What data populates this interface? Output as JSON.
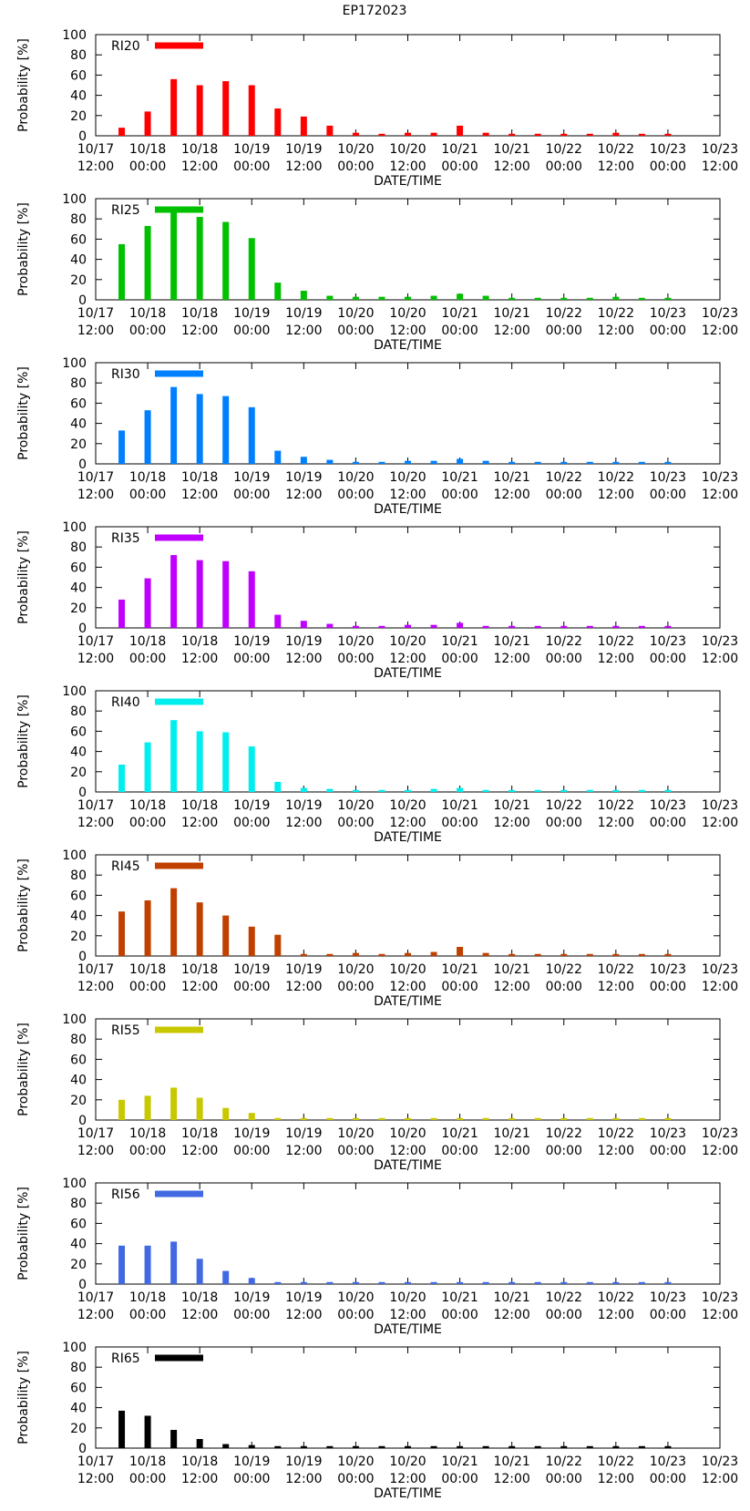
{
  "title": "EP172023",
  "chart_data": [
    {
      "type": "bar",
      "name": "RI20",
      "color": "#ff0000",
      "ylabel": "Probability [%]",
      "xlabel": "DATE/TIME",
      "ylim": [
        0,
        100
      ],
      "values": [
        8,
        24,
        56,
        50,
        54,
        50,
        27,
        19,
        10,
        3,
        2,
        3,
        3,
        10,
        3,
        2,
        2,
        2,
        2,
        3,
        2,
        2
      ]
    },
    {
      "type": "bar",
      "name": "RI25",
      "color": "#00c000",
      "ylabel": "Probability [%]",
      "xlabel": "DATE/TIME",
      "ylim": [
        0,
        100
      ],
      "values": [
        55,
        73,
        88,
        82,
        77,
        61,
        17,
        9,
        4,
        3,
        3,
        3,
        4,
        6,
        4,
        2,
        2,
        2,
        2,
        3,
        2,
        2
      ]
    },
    {
      "type": "bar",
      "name": "RI30",
      "color": "#0080ff",
      "ylabel": "Probability [%]",
      "xlabel": "DATE/TIME",
      "ylim": [
        0,
        100
      ],
      "values": [
        33,
        53,
        76,
        69,
        67,
        56,
        13,
        7,
        4,
        2,
        2,
        3,
        3,
        5,
        3,
        2,
        2,
        2,
        2,
        2,
        2,
        2
      ]
    },
    {
      "type": "bar",
      "name": "RI35",
      "color": "#c000ff",
      "ylabel": "Probability [%]",
      "xlabel": "DATE/TIME",
      "ylim": [
        0,
        100
      ],
      "values": [
        28,
        49,
        72,
        67,
        66,
        56,
        13,
        7,
        4,
        2,
        2,
        3,
        3,
        5,
        2,
        2,
        2,
        2,
        2,
        2,
        2,
        2
      ]
    },
    {
      "type": "bar",
      "name": "RI40",
      "color": "#00eeee",
      "ylabel": "Probability [%]",
      "xlabel": "DATE/TIME",
      "ylim": [
        0,
        100
      ],
      "values": [
        27,
        49,
        71,
        60,
        59,
        45,
        10,
        4,
        3,
        2,
        2,
        2,
        3,
        4,
        2,
        2,
        2,
        2,
        2,
        2,
        2,
        2
      ]
    },
    {
      "type": "bar",
      "name": "RI45",
      "color": "#c04000",
      "ylabel": "Probability [%]",
      "xlabel": "DATE/TIME",
      "ylim": [
        0,
        100
      ],
      "values": [
        44,
        55,
        67,
        53,
        40,
        29,
        21,
        2,
        2,
        3,
        2,
        3,
        4,
        9,
        3,
        2,
        2,
        2,
        2,
        2,
        2,
        2
      ]
    },
    {
      "type": "bar",
      "name": "RI55",
      "color": "#c8c800",
      "ylabel": "Probability [%]",
      "xlabel": "DATE/TIME",
      "ylim": [
        0,
        100
      ],
      "values": [
        20,
        24,
        32,
        22,
        12,
        7,
        2,
        2,
        2,
        2,
        2,
        2,
        2,
        2,
        2,
        2,
        2,
        2,
        2,
        2,
        2,
        2
      ]
    },
    {
      "type": "bar",
      "name": "RI56",
      "color": "#4169e1",
      "ylabel": "Probability [%]",
      "xlabel": "DATE/TIME",
      "ylim": [
        0,
        100
      ],
      "values": [
        38,
        38,
        42,
        25,
        13,
        6,
        2,
        2,
        2,
        2,
        2,
        2,
        2,
        2,
        2,
        2,
        2,
        2,
        2,
        2,
        2,
        2
      ]
    },
    {
      "type": "bar",
      "name": "RI65",
      "color": "#000000",
      "ylabel": "Probability [%]",
      "xlabel": "DATE/TIME",
      "ylim": [
        0,
        100
      ],
      "values": [
        37,
        32,
        18,
        9,
        4,
        3,
        2,
        2,
        2,
        2,
        2,
        2,
        2,
        2,
        2,
        2,
        2,
        2,
        2,
        2,
        2,
        2
      ]
    }
  ],
  "axis": {
    "yticks": [
      "0",
      "20",
      "40",
      "60",
      "80",
      "100"
    ],
    "xticks": [
      [
        "10/17",
        "12:00"
      ],
      [
        "10/18",
        "00:00"
      ],
      [
        "10/18",
        "12:00"
      ],
      [
        "10/19",
        "00:00"
      ],
      [
        "10/19",
        "12:00"
      ],
      [
        "10/20",
        "00:00"
      ],
      [
        "10/20",
        "12:00"
      ],
      [
        "10/21",
        "00:00"
      ],
      [
        "10/21",
        "12:00"
      ],
      [
        "10/22",
        "00:00"
      ],
      [
        "10/22",
        "12:00"
      ],
      [
        "10/23",
        "00:00"
      ],
      [
        "10/23",
        "12:00"
      ]
    ]
  }
}
